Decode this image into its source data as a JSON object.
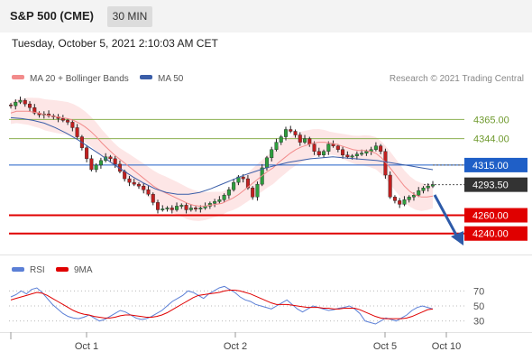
{
  "header": {
    "instrument": "S&P 500 (CME)",
    "timeframe": "30 MIN",
    "datetime": "Tuesday, October 5, 2021 2:10:03 AM CET"
  },
  "legend": {
    "ma20_label": "MA 20 + Bollinger Bands",
    "ma50_label": "MA 50",
    "copyright": "Research © 2021 Trading Central",
    "ma20_color": "#f28b8b",
    "ma50_color": "#3b5ea8"
  },
  "rsi_legend": {
    "rsi_label": "RSI",
    "ma9_label": "9MA",
    "rsi_color": "#5b7fd6",
    "ma9_color": "#e00000"
  },
  "chart_data": [
    {
      "type": "line",
      "y_range": [
        4217,
        4397
      ],
      "x_tick_labels": [
        "Oct 1",
        "Oct 2",
        "Oct 5",
        "Oct 10"
      ],
      "horizontal_levels": [
        {
          "label": "4365.00",
          "value": 4365.0,
          "style": "resistance",
          "color": "#8cb050"
        },
        {
          "label": "4344.00",
          "value": 4344.0,
          "style": "resistance",
          "color": "#8cb050"
        },
        {
          "label": "4315.00",
          "value": 4315.0,
          "style": "pivot",
          "color": "#1f5fc7"
        },
        {
          "label": "4260.00",
          "value": 4260.0,
          "style": "support",
          "color": "#e00000"
        },
        {
          "label": "4240.00",
          "value": 4240.0,
          "style": "support",
          "color": "#e00000"
        }
      ],
      "last_price": {
        "label": "4293.50",
        "value": 4293.5
      },
      "close_series": [
        4380,
        4384,
        4386,
        4382,
        4378,
        4372,
        4370,
        4371,
        4369,
        4368,
        4366,
        4364,
        4362,
        4356,
        4346,
        4334,
        4322,
        4310,
        4315,
        4320,
        4324,
        4322,
        4316,
        4308,
        4300,
        4296,
        4294,
        4292,
        4288,
        4283,
        4274,
        4266,
        4267,
        4268,
        4266,
        4270,
        4271,
        4266,
        4268,
        4267,
        4268,
        4270,
        4273,
        4275,
        4277,
        4282,
        4288,
        4296,
        4302,
        4300,
        4290,
        4280,
        4294,
        4312,
        4323,
        4332,
        4340,
        4346,
        4354,
        4352,
        4348,
        4340,
        4344,
        4338,
        4330,
        4326,
        4330,
        4338,
        4336,
        4332,
        4326,
        4324,
        4325,
        4327,
        4328,
        4330,
        4332,
        4336,
        4330,
        4304,
        4280,
        4276,
        4272,
        4277,
        4280,
        4282,
        4287,
        4290,
        4292,
        4293.5
      ],
      "ma20_series": [
        4372,
        4374,
        4374,
        4374,
        4373,
        4372,
        4370,
        4369,
        4368,
        4367,
        4366,
        4364,
        4361,
        4357,
        4352,
        4346,
        4339,
        4333,
        4327,
        4322,
        4317,
        4312,
        4307,
        4302,
        4297,
        4292,
        4288,
        4285,
        4282,
        4279,
        4276,
        4273,
        4271,
        4270,
        4270,
        4271,
        4272,
        4273,
        4276,
        4279,
        4283,
        4288,
        4293,
        4298,
        4303,
        4308,
        4312,
        4318,
        4323,
        4328,
        4332,
        4335,
        4337,
        4339,
        4340,
        4340,
        4339,
        4338,
        4336,
        4334,
        4332,
        4331,
        4331,
        4330,
        4328,
        4323,
        4316,
        4308,
        4300,
        4292,
        4286,
        4282,
        4280,
        4280,
        4281
      ],
      "ma50_series": [
        4367,
        4366,
        4364,
        4361,
        4356,
        4350,
        4343,
        4335,
        4327,
        4318,
        4310,
        4302,
        4295,
        4289,
        4285,
        4283,
        4283,
        4285,
        4289,
        4294,
        4299,
        4304,
        4308,
        4312,
        4315,
        4318,
        4320,
        4322,
        4323,
        4324,
        4323,
        4322,
        4321,
        4320,
        4318,
        4316,
        4314,
        4312,
        4310
      ],
      "series": [
        {
          "name": "MA 20 + Bollinger Bands"
        },
        {
          "name": "MA 50"
        }
      ]
    },
    {
      "type": "line",
      "y_range": [
        20,
        80
      ],
      "y_tick_labels": [
        "70",
        "50",
        "30"
      ],
      "y_tick_values": [
        70,
        50,
        30
      ],
      "series": [
        {
          "name": "RSI",
          "values": [
            62,
            65,
            70,
            66,
            72,
            74,
            68,
            60,
            52,
            46,
            40,
            36,
            34,
            33,
            35,
            38,
            34,
            30,
            32,
            36,
            40,
            44,
            42,
            38,
            34,
            32,
            33,
            36,
            40,
            44,
            50,
            56,
            60,
            64,
            70,
            68,
            64,
            60,
            66,
            70,
            74,
            76,
            72,
            68,
            62,
            58,
            56,
            52,
            50,
            48,
            46,
            50,
            54,
            58,
            52,
            46,
            42,
            46,
            50,
            48,
            46,
            44,
            45,
            47,
            48,
            50,
            46,
            40,
            30,
            28,
            26,
            30,
            34,
            32,
            30,
            34,
            38,
            44,
            48,
            50,
            48,
            46
          ]
        },
        {
          "name": "9MA",
          "values": [
            58,
            60,
            62,
            64,
            66,
            68,
            67,
            64,
            60,
            56,
            52,
            48,
            44,
            41,
            39,
            38,
            36,
            35,
            34,
            34,
            35,
            37,
            38,
            38,
            37,
            36,
            35,
            35,
            36,
            38,
            41,
            45,
            49,
            53,
            57,
            61,
            64,
            65,
            66,
            67,
            68,
            70,
            71,
            71,
            70,
            68,
            66,
            63,
            60,
            57,
            54,
            52,
            52,
            52,
            51,
            50,
            49,
            48,
            48,
            48,
            47,
            47,
            46,
            46,
            47,
            47,
            47,
            45,
            42,
            39,
            36,
            34,
            33,
            33,
            33,
            33,
            34,
            36,
            39,
            42,
            45,
            46
          ]
        }
      ]
    }
  ]
}
